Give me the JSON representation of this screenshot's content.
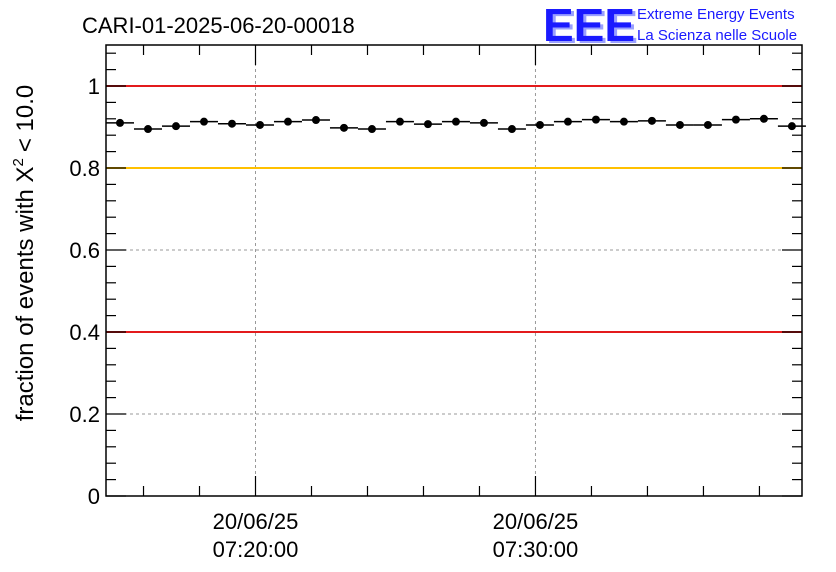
{
  "chart_data": {
    "type": "scatter",
    "title": "CARI-01-2025-06-20-00018",
    "ylabel_prefix": "fraction of events with",
    "ylabel_symbol": "X",
    "ylabel_superscript": "2",
    "ylabel_suffix": "< 10.0",
    "xlabel": "",
    "ylim": [
      0,
      1.1
    ],
    "y_ticks": [
      0,
      0.2,
      0.4,
      0.6,
      0.8,
      1
    ],
    "y_tick_labels": [
      "0",
      "0.2",
      "0.4",
      "0.6",
      "0.8",
      "1"
    ],
    "x_time_ticks": [
      {
        "minutes": 20,
        "date": "20/06/25",
        "time": "07:20:00"
      },
      {
        "minutes": 30,
        "date": "20/06/25",
        "time": "07:30:00"
      }
    ],
    "xlim_minutes": [
      14.66,
      39.52
    ],
    "bin_width_minutes": 1.0,
    "grid": true,
    "series": [
      {
        "name": "fraction",
        "marker": "circle",
        "color": "#000000",
        "x_minutes": [
          15.16,
          16.16,
          17.16,
          18.16,
          19.16,
          20.16,
          21.16,
          22.16,
          23.16,
          24.16,
          25.16,
          26.16,
          27.16,
          28.16,
          29.16,
          30.16,
          31.16,
          32.16,
          33.16,
          34.16,
          35.16,
          36.16,
          37.16,
          38.16,
          39.16
        ],
        "values": [
          0.91,
          0.895,
          0.902,
          0.913,
          0.908,
          0.905,
          0.913,
          0.917,
          0.898,
          0.895,
          0.913,
          0.907,
          0.913,
          0.91,
          0.895,
          0.905,
          0.913,
          0.918,
          0.913,
          0.915,
          0.905,
          0.905,
          0.918,
          0.92,
          0.902
        ]
      }
    ],
    "reference_lines": [
      {
        "y": 1.0,
        "color": "#e31a1c"
      },
      {
        "y": 0.8,
        "color": "#ffc000"
      },
      {
        "y": 0.4,
        "color": "#e31a1c"
      }
    ]
  },
  "logo": {
    "mark": "EEE",
    "line1": "Extreme Energy Events",
    "line2": "La Scienza nelle Scuole",
    "color": "#1a1aff"
  }
}
